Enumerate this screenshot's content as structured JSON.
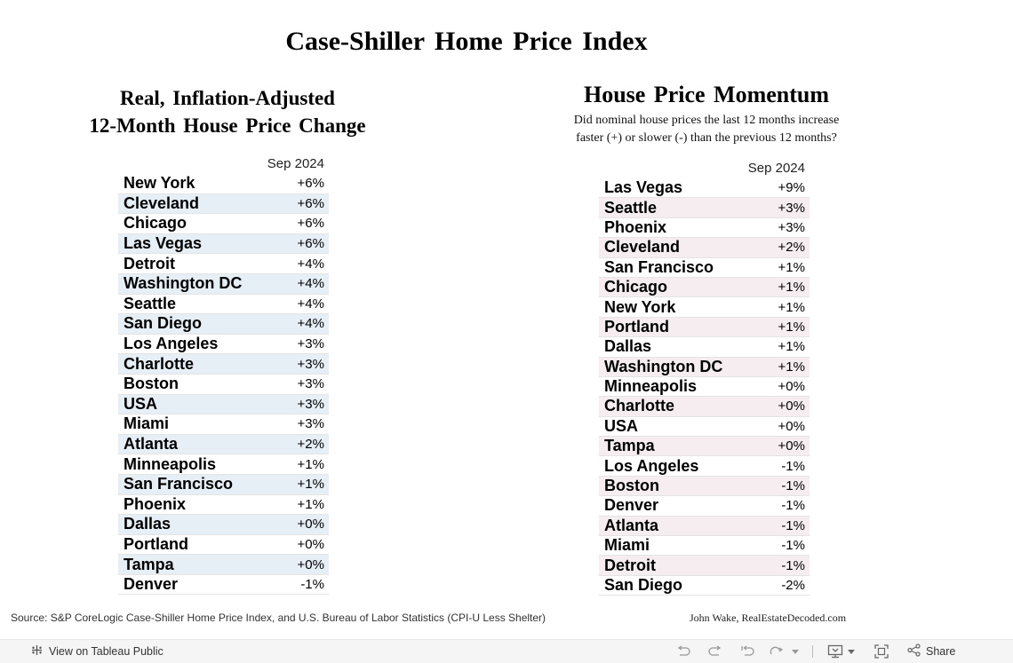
{
  "page": {
    "title": "Case-Shiller Home Price Index",
    "left_title_line1": "Real, Inflation-Adjusted",
    "left_title_line2": "12-Month House Price Change",
    "right_title": "House Price Momentum",
    "right_subtitle_line1": "Did nominal house prices the last 12 months increase",
    "right_subtitle_line2": "faster (+) or slower (-) than the previous 12 months?"
  },
  "real_change": {
    "column": "Sep 2024",
    "rows": [
      {
        "city": "New York",
        "value": "+6%"
      },
      {
        "city": "Cleveland",
        "value": "+6%"
      },
      {
        "city": "Chicago",
        "value": "+6%"
      },
      {
        "city": "Las Vegas",
        "value": "+6%"
      },
      {
        "city": "Detroit",
        "value": "+4%"
      },
      {
        "city": "Washington DC",
        "value": "+4%"
      },
      {
        "city": "Seattle",
        "value": "+4%"
      },
      {
        "city": "San Diego",
        "value": "+4%"
      },
      {
        "city": "Los Angeles",
        "value": "+3%"
      },
      {
        "city": "Charlotte",
        "value": "+3%"
      },
      {
        "city": "Boston",
        "value": "+3%"
      },
      {
        "city": "USA",
        "value": "+3%"
      },
      {
        "city": "Miami",
        "value": "+3%"
      },
      {
        "city": "Atlanta",
        "value": "+2%"
      },
      {
        "city": "Minneapolis",
        "value": "+1%"
      },
      {
        "city": "San Francisco",
        "value": "+1%"
      },
      {
        "city": "Phoenix",
        "value": "+1%"
      },
      {
        "city": "Dallas",
        "value": "+0%"
      },
      {
        "city": "Portland",
        "value": "+0%"
      },
      {
        "city": "Tampa",
        "value": "+0%"
      },
      {
        "city": "Denver",
        "value": "-1%"
      }
    ]
  },
  "momentum": {
    "column": "Sep 2024",
    "rows": [
      {
        "city": "Las Vegas",
        "value": "+9%"
      },
      {
        "city": "Seattle",
        "value": "+3%"
      },
      {
        "city": "Phoenix",
        "value": "+3%"
      },
      {
        "city": "Cleveland",
        "value": "+2%"
      },
      {
        "city": "San Francisco",
        "value": "+1%"
      },
      {
        "city": "Chicago",
        "value": "+1%"
      },
      {
        "city": "New York",
        "value": "+1%"
      },
      {
        "city": "Portland",
        "value": "+1%"
      },
      {
        "city": "Dallas",
        "value": "+1%"
      },
      {
        "city": "Washington DC",
        "value": "+1%"
      },
      {
        "city": "Minneapolis",
        "value": "+0%"
      },
      {
        "city": "Charlotte",
        "value": "+0%"
      },
      {
        "city": "USA",
        "value": "+0%"
      },
      {
        "city": "Tampa",
        "value": "+0%"
      },
      {
        "city": "Los Angeles",
        "value": "-1%"
      },
      {
        "city": "Boston",
        "value": "-1%"
      },
      {
        "city": "Denver",
        "value": "-1%"
      },
      {
        "city": "Atlanta",
        "value": "-1%"
      },
      {
        "city": "Miami",
        "value": "-1%"
      },
      {
        "city": "Detroit",
        "value": "-1%"
      },
      {
        "city": "San Diego",
        "value": "-2%"
      }
    ]
  },
  "footer": {
    "source": "Source: S&P CoreLogic Case-Shiller Home Price Index, and U.S. Bureau of Labor Statistics (CPI-U Less Shelter)",
    "credit": "John Wake, RealEstateDecoded.com"
  },
  "toolbar": {
    "view_label": "View on Tableau Public",
    "share_label": "Share",
    "icons": [
      "tableau-logo-icon",
      "undo-icon",
      "redo-icon",
      "revert-icon",
      "refresh-icon",
      "download-icon",
      "fullscreen-icon",
      "share-icon"
    ]
  },
  "colors": {
    "left_alt_row": "#e6eff6",
    "right_alt_row": "#f6edf1",
    "toolbar_bg": "#f5f5f5"
  }
}
